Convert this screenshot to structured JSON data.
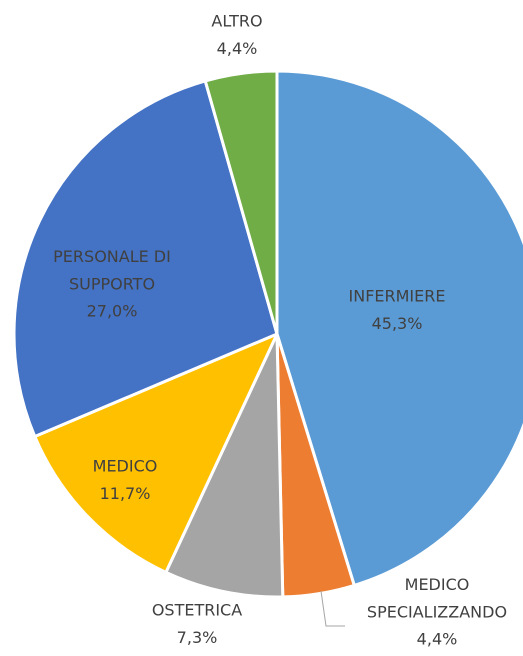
{
  "chart_data": {
    "type": "pie",
    "categories": [
      "INFERMIERE",
      "MEDICO SPECIALIZZANDO",
      "OSTETRICA",
      "MEDICO",
      "PERSONALE DI SUPPORTO",
      "ALTRO"
    ],
    "values": [
      45.3,
      4.4,
      7.3,
      11.7,
      27.0,
      4.4
    ],
    "value_labels": [
      "45,3%",
      "4,4%",
      "7,3%",
      "11,7%",
      "27,0%",
      "4,4%"
    ],
    "colors": [
      "#5b9bd5",
      "#ed7d31",
      "#a5a5a5",
      "#ffc000",
      "#4472c4",
      "#70ad47"
    ]
  }
}
